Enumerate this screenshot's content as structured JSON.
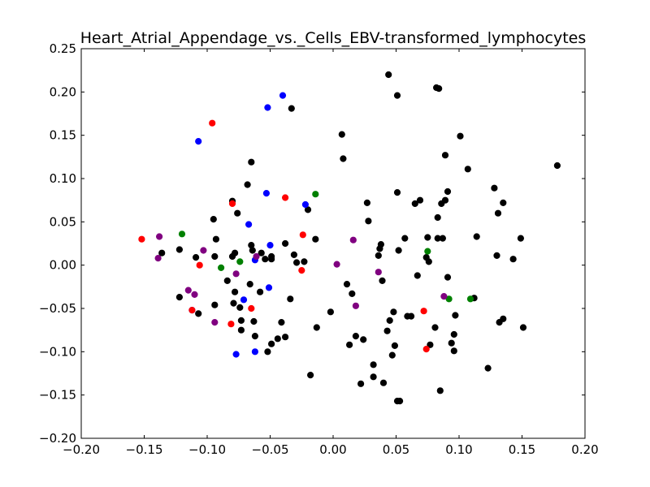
{
  "chart_data": {
    "type": "scatter",
    "title": "Heart_Atrial_Appendage_vs._Cells_EBV-transformed_lymphocytes",
    "xlabel": "",
    "ylabel": "",
    "xlim": [
      -0.2,
      0.2
    ],
    "ylim": [
      -0.2,
      0.25
    ],
    "x_ticks": [
      -0.2,
      -0.15,
      -0.1,
      -0.05,
      0.0,
      0.05,
      0.1,
      0.15,
      0.2
    ],
    "y_ticks": [
      -0.2,
      -0.15,
      -0.1,
      -0.05,
      0.0,
      0.05,
      0.1,
      0.15,
      0.2,
      0.25
    ],
    "x_tick_labels": [
      "−0.20",
      "−0.15",
      "−0.10",
      "−0.05",
      "0.00",
      "0.05",
      "0.10",
      "0.15",
      "0.20"
    ],
    "y_tick_labels": [
      "−0.20",
      "−0.15",
      "−0.10",
      "−0.05",
      "0.00",
      "0.05",
      "0.10",
      "0.15",
      "0.20",
      "0.25"
    ],
    "grid": false,
    "series": [
      {
        "color": "#000000",
        "points": [
          [
            -0.136,
            0.014
          ],
          [
            -0.122,
            0.018
          ],
          [
            -0.122,
            -0.037
          ],
          [
            -0.109,
            0.009
          ],
          [
            -0.107,
            -0.056
          ],
          [
            -0.095,
            0.053
          ],
          [
            -0.094,
            0.01
          ],
          [
            -0.093,
            0.03
          ],
          [
            -0.094,
            -0.046
          ],
          [
            -0.084,
            -0.018
          ],
          [
            -0.08,
            0.074
          ],
          [
            -0.08,
            0.01
          ],
          [
            -0.078,
            0.014
          ],
          [
            -0.078,
            -0.031
          ],
          [
            -0.079,
            -0.044
          ],
          [
            -0.076,
            0.06
          ],
          [
            -0.074,
            -0.049
          ],
          [
            -0.073,
            -0.064
          ],
          [
            -0.073,
            -0.075
          ],
          [
            -0.068,
            0.093
          ],
          [
            -0.065,
            0.119
          ],
          [
            -0.065,
            0.023
          ],
          [
            -0.064,
            0.017
          ],
          [
            -0.066,
            -0.022
          ],
          [
            -0.063,
            -0.065
          ],
          [
            -0.062,
            -0.082
          ],
          [
            -0.058,
            -0.031
          ],
          [
            -0.057,
            0.014
          ],
          [
            -0.054,
            0.007
          ],
          [
            -0.052,
            -0.1
          ],
          [
            -0.049,
            0.01
          ],
          [
            -0.049,
            0.007
          ],
          [
            -0.049,
            -0.091
          ],
          [
            -0.044,
            -0.085
          ],
          [
            -0.041,
            -0.066
          ],
          [
            -0.038,
            0.025
          ],
          [
            -0.038,
            -0.083
          ],
          [
            -0.034,
            -0.039
          ],
          [
            -0.033,
            0.181
          ],
          [
            -0.031,
            0.012
          ],
          [
            -0.029,
            0.003
          ],
          [
            -0.023,
            0.004
          ],
          [
            -0.02,
            0.064
          ],
          [
            -0.014,
            0.03
          ],
          [
            -0.018,
            -0.127
          ],
          [
            -0.013,
            -0.072
          ],
          [
            -0.002,
            -0.054
          ],
          [
            0.007,
            0.151
          ],
          [
            0.008,
            0.123
          ],
          [
            0.011,
            -0.022
          ],
          [
            0.013,
            -0.092
          ],
          [
            0.015,
            -0.033
          ],
          [
            0.018,
            -0.082
          ],
          [
            0.022,
            -0.137
          ],
          [
            0.024,
            -0.086
          ],
          [
            0.027,
            0.072
          ],
          [
            0.028,
            0.051
          ],
          [
            0.032,
            -0.115
          ],
          [
            0.032,
            -0.129
          ],
          [
            0.036,
            0.011
          ],
          [
            0.037,
            0.019
          ],
          [
            0.038,
            0.024
          ],
          [
            0.039,
            -0.018
          ],
          [
            0.04,
            -0.136
          ],
          [
            0.043,
            -0.076
          ],
          [
            0.044,
            0.22
          ],
          [
            0.045,
            -0.064
          ],
          [
            0.047,
            -0.104
          ],
          [
            0.048,
            -0.054
          ],
          [
            0.049,
            -0.093
          ],
          [
            0.051,
            0.196
          ],
          [
            0.051,
            0.084
          ],
          [
            0.052,
            0.017
          ],
          [
            0.051,
            -0.157
          ],
          [
            0.053,
            -0.157
          ],
          [
            0.057,
            0.031
          ],
          [
            0.059,
            -0.059
          ],
          [
            0.062,
            -0.059
          ],
          [
            0.065,
            0.071
          ],
          [
            0.067,
            -0.012
          ],
          [
            0.069,
            0.075
          ],
          [
            0.074,
            0.009
          ],
          [
            0.075,
            0.032
          ],
          [
            0.076,
            0.004
          ],
          [
            0.077,
            -0.092
          ],
          [
            0.081,
            -0.072
          ],
          [
            0.082,
            0.205
          ],
          [
            0.084,
            0.204
          ],
          [
            0.083,
            0.055
          ],
          [
            0.083,
            0.031
          ],
          [
            0.085,
            -0.145
          ],
          [
            0.086,
            0.071
          ],
          [
            0.087,
            0.031
          ],
          [
            0.089,
            0.127
          ],
          [
            0.089,
            0.075
          ],
          [
            0.091,
            0.085
          ],
          [
            0.091,
            -0.014
          ],
          [
            0.094,
            -0.09
          ],
          [
            0.096,
            -0.08
          ],
          [
            0.096,
            -0.099
          ],
          [
            0.097,
            -0.058
          ],
          [
            0.101,
            0.149
          ],
          [
            0.107,
            0.111
          ],
          [
            0.112,
            -0.038
          ],
          [
            0.114,
            0.033
          ],
          [
            0.123,
            -0.119
          ],
          [
            0.128,
            0.089
          ],
          [
            0.13,
            0.011
          ],
          [
            0.131,
            0.06
          ],
          [
            0.132,
            -0.066
          ],
          [
            0.135,
            0.072
          ],
          [
            0.135,
            -0.062
          ],
          [
            0.143,
            0.007
          ],
          [
            0.149,
            0.031
          ],
          [
            0.151,
            -0.072
          ],
          [
            0.178,
            0.115
          ]
        ]
      },
      {
        "color": "#0000ff",
        "points": [
          [
            -0.107,
            0.143
          ],
          [
            -0.112,
            -0.052
          ],
          [
            -0.077,
            -0.103
          ],
          [
            -0.071,
            -0.04
          ],
          [
            -0.067,
            0.047
          ],
          [
            -0.062,
            0.006
          ],
          [
            -0.062,
            -0.1
          ],
          [
            -0.053,
            0.083
          ],
          [
            -0.052,
            0.182
          ],
          [
            -0.051,
            -0.026
          ],
          [
            -0.05,
            0.023
          ],
          [
            -0.04,
            0.196
          ],
          [
            -0.022,
            0.07
          ]
        ]
      },
      {
        "color": "#ff0000",
        "points": [
          [
            -0.152,
            0.03
          ],
          [
            -0.112,
            -0.052
          ],
          [
            -0.106,
            0.0
          ],
          [
            -0.096,
            0.164
          ],
          [
            -0.08,
            0.071
          ],
          [
            -0.081,
            -0.068
          ],
          [
            -0.065,
            -0.05
          ],
          [
            -0.038,
            0.078
          ],
          [
            -0.025,
            -0.006
          ],
          [
            -0.024,
            0.035
          ],
          [
            0.072,
            -0.053
          ],
          [
            0.074,
            -0.097
          ]
        ]
      },
      {
        "color": "#008000",
        "points": [
          [
            -0.12,
            0.036
          ],
          [
            -0.089,
            -0.003
          ],
          [
            -0.074,
            0.004
          ],
          [
            -0.014,
            0.082
          ],
          [
            0.075,
            0.016
          ],
          [
            0.092,
            -0.039
          ],
          [
            0.109,
            -0.039
          ]
        ]
      },
      {
        "color": "#800080",
        "points": [
          [
            -0.138,
            0.033
          ],
          [
            -0.139,
            0.008
          ],
          [
            -0.115,
            -0.029
          ],
          [
            -0.11,
            -0.034
          ],
          [
            -0.103,
            0.017
          ],
          [
            -0.094,
            -0.066
          ],
          [
            -0.077,
            -0.01
          ],
          [
            -0.061,
            0.01
          ],
          [
            0.003,
            0.001
          ],
          [
            0.016,
            0.029
          ],
          [
            0.018,
            -0.047
          ],
          [
            0.036,
            -0.008
          ],
          [
            0.088,
            -0.036
          ]
        ]
      }
    ]
  }
}
